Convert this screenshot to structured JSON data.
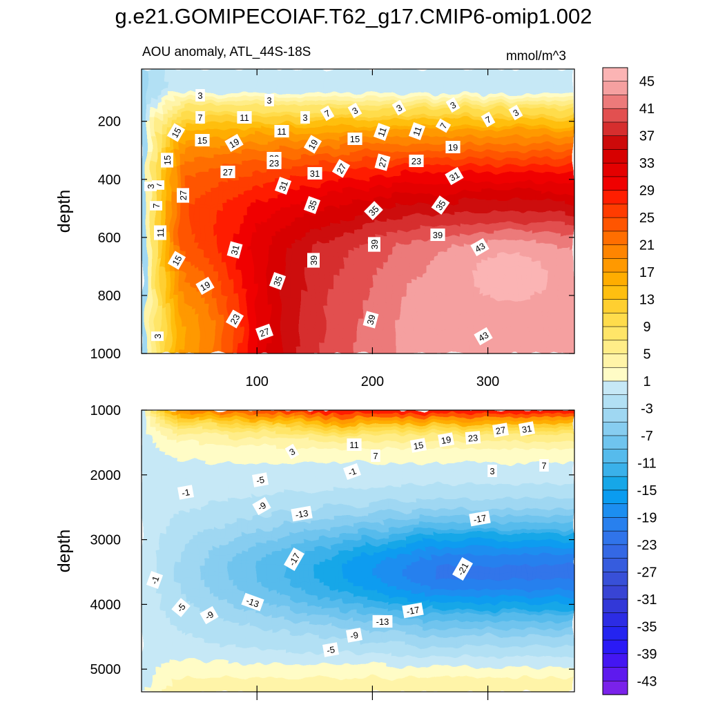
{
  "title": "g.e21.GOMIPECOIAF.T62_g17.CMIP6-omip1.002",
  "chart_data": {
    "type": "contour",
    "variable": "AOU anomaly, ATL_44S-18S",
    "units": "mmol/m^3",
    "x_range": [
      0,
      375
    ],
    "x_ticks": [
      100,
      200,
      300
    ],
    "colorbar": {
      "levels": [
        45,
        43,
        41,
        39,
        37,
        35,
        33,
        31,
        29,
        27,
        25,
        23,
        21,
        19,
        17,
        15,
        13,
        11,
        9,
        7,
        5,
        3,
        1,
        -1,
        -3,
        -5,
        -7,
        -9,
        -11,
        -13,
        -15,
        -17,
        -19,
        -21,
        -23,
        -25,
        -27,
        -29,
        -31,
        -33,
        -35,
        -37,
        -39,
        -41,
        -43,
        -45
      ],
      "tick_labels": [
        "45",
        "41",
        "37",
        "33",
        "29",
        "25",
        "21",
        "17",
        "13",
        "9",
        "5",
        "1",
        "-3",
        "-7",
        "-11",
        "-15",
        "-19",
        "-23",
        "-27",
        "-31",
        "-35",
        "-39",
        "-43"
      ],
      "colors": [
        "#fbb4b4",
        "#f5a0a0",
        "#ec7a7a",
        "#e25050",
        "#d62e2e",
        "#cd0a0a",
        "#d70000",
        "#e40000",
        "#f00000",
        "#ff1e00",
        "#ff3c00",
        "#ff5500",
        "#ff6e00",
        "#ff8500",
        "#ff9900",
        "#ffad00",
        "#ffbf10",
        "#ffcf30",
        "#ffdc4c",
        "#ffe568",
        "#ffed88",
        "#fff4a8",
        "#fffcc6",
        "#c6e8f6",
        "#b2e0f4",
        "#9fd7f2",
        "#87cdf0",
        "#6fc4ee",
        "#56bbec",
        "#3ab1ea",
        "#16a7e8",
        "#0a9cf0",
        "#1c8ef0",
        "#2880ee",
        "#3074ea",
        "#3468e4",
        "#365cde",
        "#3850d8",
        "#3844d4",
        "#3238d8",
        "#2c2ce4",
        "#2424f0",
        "#2a1af6",
        "#4416f2",
        "#5e1aee",
        "#7a22ea"
      ]
    },
    "upper_panel": {
      "title": "AOU anomaly, ATL_44S-18S",
      "units_label": "mmol/m^3",
      "ylabel": "depth",
      "y_range": [
        1000,
        20
      ],
      "y_ticks": [
        200,
        400,
        600,
        800,
        1000
      ],
      "contour_labels": [
        "3",
        "3",
        "3",
        "3",
        "3",
        "3",
        "3",
        "7",
        "7",
        "7",
        "7",
        "7",
        "11",
        "11",
        "11",
        "11",
        "15",
        "15",
        "15",
        "15",
        "19",
        "19",
        "19",
        "23",
        "23",
        "27",
        "27",
        "27",
        "31",
        "31",
        "31",
        "35",
        "35",
        "35",
        "3",
        "7",
        "11",
        "15",
        "19",
        "23",
        "27",
        "31",
        "35",
        "39",
        "39",
        "39",
        "43",
        "43",
        "39",
        "23",
        "27",
        "3"
      ]
    },
    "lower_panel": {
      "ylabel": "depth",
      "y_range": [
        5350,
        1000
      ],
      "y_ticks": [
        1000,
        2000,
        3000,
        4000,
        5000
      ],
      "contour_labels": [
        "11",
        "15",
        "19",
        "23",
        "27",
        "31",
        "7",
        "3",
        "7",
        "3",
        "-1",
        "-5",
        "-1",
        "-9",
        "-13",
        "-17",
        "-17",
        "-21",
        "-1",
        "-5",
        "-9",
        "-13",
        "-17",
        "-13",
        "-9",
        "-5"
      ]
    }
  }
}
